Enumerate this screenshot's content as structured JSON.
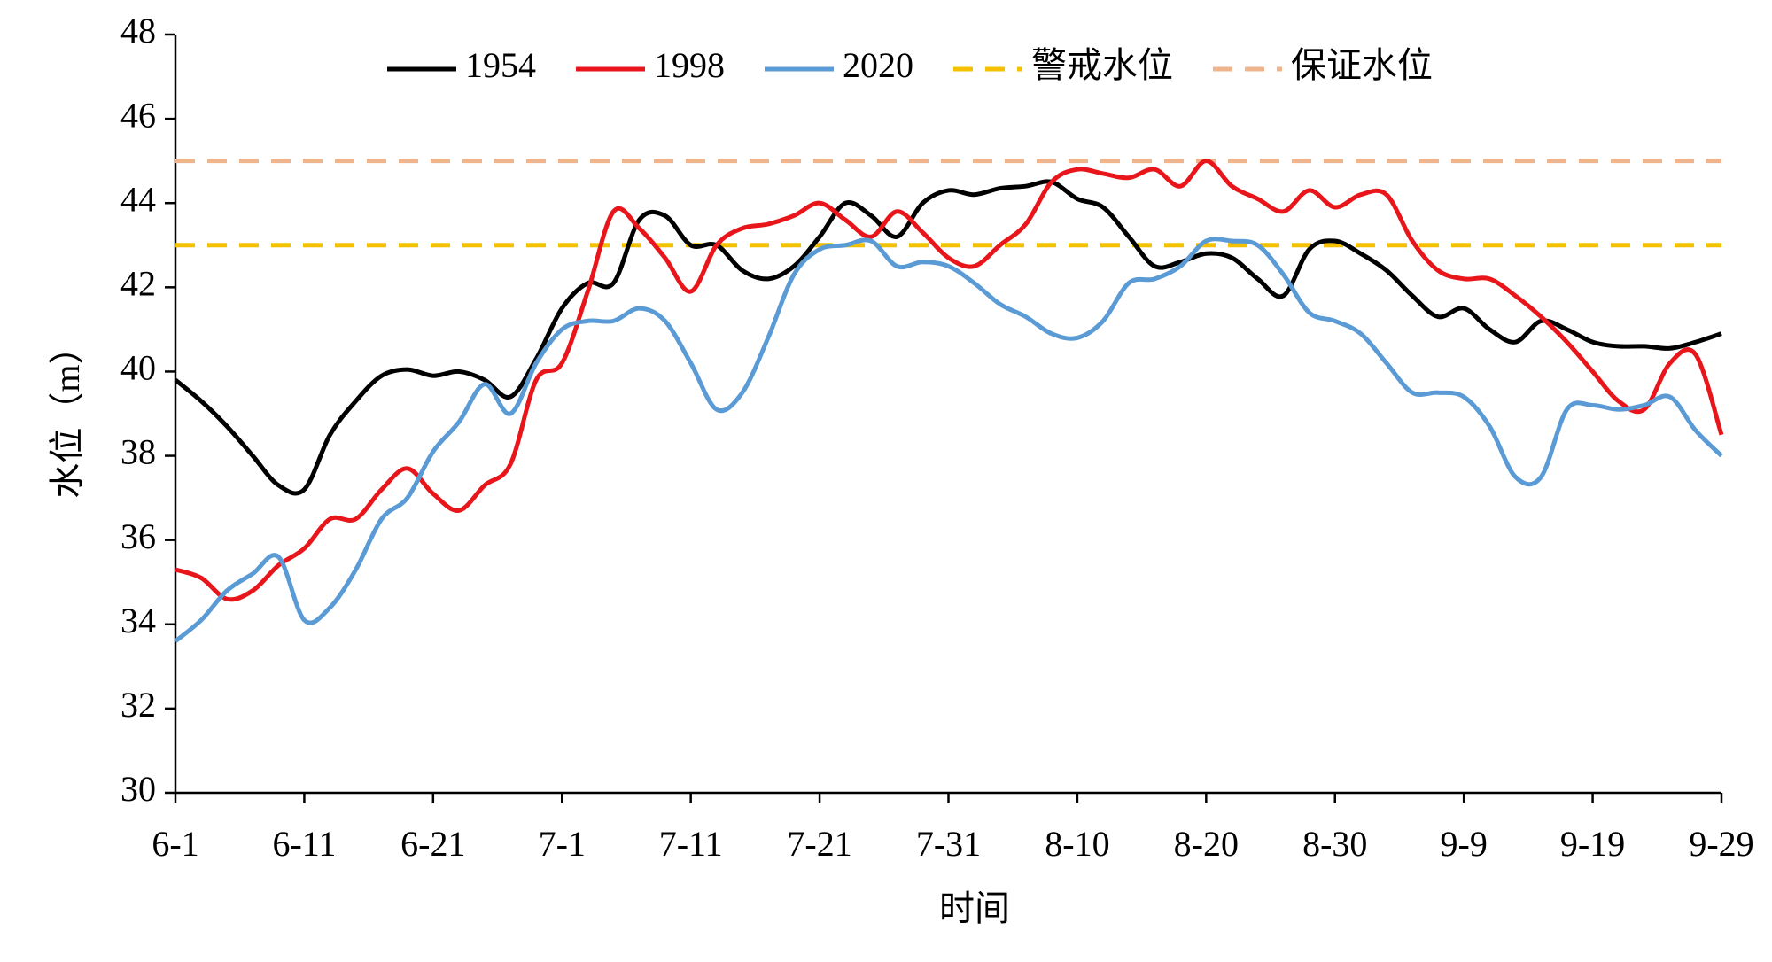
{
  "chart_data": {
    "type": "line",
    "x_label": "时间",
    "y_label": "水位（m）",
    "categories": [
      "6-1",
      null,
      null,
      null,
      null,
      "6-11",
      null,
      null,
      null,
      null,
      "6-21",
      null,
      null,
      null,
      null,
      "7-1",
      null,
      null,
      null,
      null,
      "7-11",
      null,
      null,
      null,
      null,
      "7-21",
      null,
      null,
      null,
      null,
      "7-31",
      null,
      null,
      null,
      null,
      "8-10",
      null,
      null,
      null,
      null,
      "8-20",
      null,
      null,
      null,
      null,
      "8-30",
      null,
      null,
      null,
      null,
      "9-9",
      null,
      null,
      null,
      null,
      "9-19",
      null,
      null,
      null,
      null,
      "9-29"
    ],
    "series": [
      {
        "name": "1954",
        "color": "#000000",
        "values": [
          39.8,
          39.3,
          38.7,
          38.0,
          37.3,
          37.2,
          38.5,
          39.3,
          39.9,
          40.05,
          39.9,
          40.0,
          39.8,
          39.4,
          40.3,
          41.5,
          42.1,
          42.1,
          43.6,
          43.7,
          43.0,
          43.0,
          42.4,
          42.2,
          42.5,
          43.2,
          44.0,
          43.7,
          43.2,
          44.0,
          44.3,
          44.2,
          44.35,
          44.4,
          44.5,
          44.1,
          43.9,
          43.2,
          42.5,
          42.6,
          42.8,
          42.7,
          42.2,
          41.8,
          42.9,
          43.1,
          42.8,
          42.4,
          41.8,
          41.3,
          41.5,
          41.0,
          40.7,
          41.2,
          41.0,
          40.7,
          40.6,
          40.6,
          40.55,
          40.7,
          40.9
        ]
      },
      {
        "name": "1998",
        "color": "#e8161b",
        "values": [
          35.3,
          35.1,
          34.6,
          34.8,
          35.4,
          35.8,
          36.5,
          36.5,
          37.2,
          37.7,
          37.1,
          36.7,
          37.3,
          37.8,
          39.8,
          40.2,
          41.9,
          43.8,
          43.4,
          42.7,
          41.9,
          43.0,
          43.4,
          43.5,
          43.7,
          44.0,
          43.6,
          43.2,
          43.8,
          43.3,
          42.7,
          42.5,
          43.0,
          43.5,
          44.5,
          44.8,
          44.7,
          44.6,
          44.8,
          44.4,
          45.0,
          44.4,
          44.1,
          43.8,
          44.3,
          43.9,
          44.2,
          44.2,
          43.1,
          42.4,
          42.2,
          42.2,
          41.8,
          41.3,
          40.7,
          40.0,
          39.3,
          39.1,
          40.2,
          40.4,
          38.5
        ]
      },
      {
        "name": "2020",
        "color": "#5b9bd5",
        "values": [
          33.6,
          34.1,
          34.8,
          35.2,
          35.6,
          34.1,
          34.4,
          35.3,
          36.5,
          37.0,
          38.1,
          38.8,
          39.7,
          39.0,
          40.2,
          41.0,
          41.2,
          41.2,
          41.5,
          41.2,
          40.2,
          39.1,
          39.5,
          40.8,
          42.3,
          42.9,
          43.0,
          43.1,
          42.5,
          42.6,
          42.5,
          42.1,
          41.6,
          41.3,
          40.9,
          40.8,
          41.2,
          42.1,
          42.2,
          42.5,
          43.1,
          43.1,
          43.0,
          42.3,
          41.4,
          41.2,
          40.9,
          40.2,
          39.5,
          39.5,
          39.4,
          38.7,
          37.5,
          37.5,
          39.1,
          39.2,
          39.1,
          39.2,
          39.4,
          38.6,
          38.0
        ]
      }
    ],
    "reference_lines": [
      {
        "name": "警戒水位",
        "color": "#f5c000",
        "value": 43
      },
      {
        "name": "保证水位",
        "color": "#f0b48c",
        "value": 45
      }
    ],
    "ylim": [
      30,
      48
    ],
    "yticks": [
      30,
      32,
      34,
      36,
      38,
      40,
      42,
      44,
      46,
      48
    ]
  }
}
